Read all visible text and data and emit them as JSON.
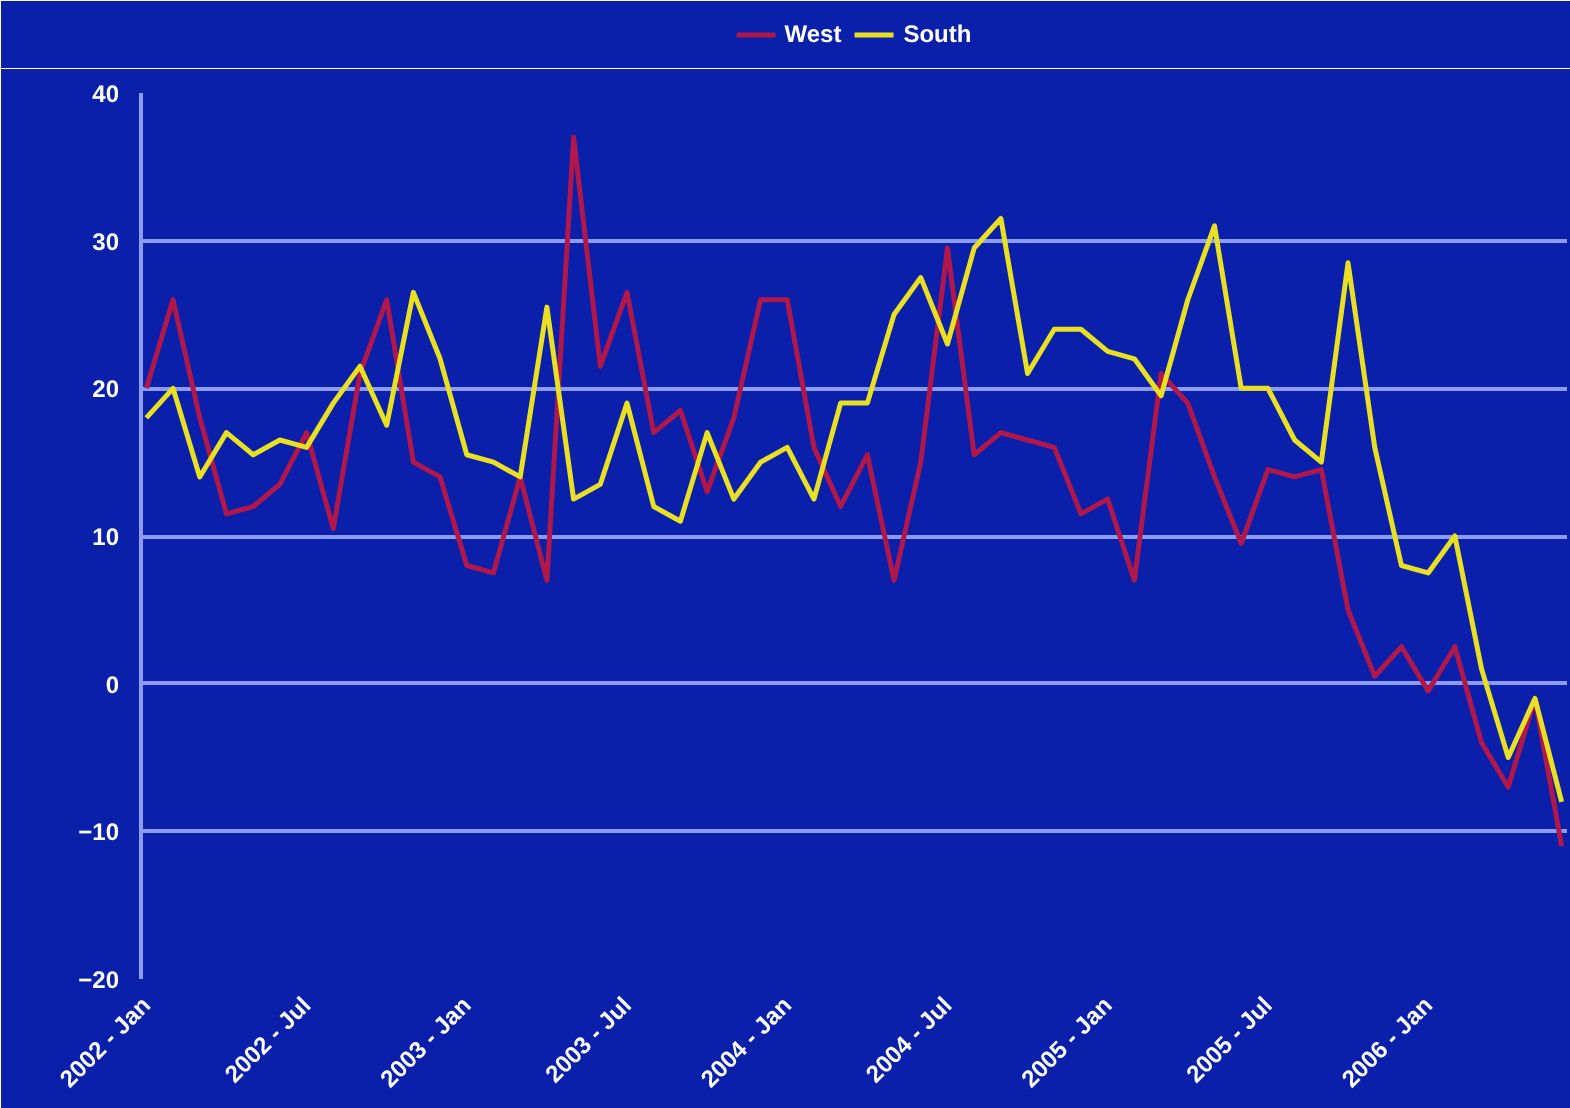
{
  "chart_data": {
    "type": "line",
    "categories": [
      "2002 - Jan",
      null,
      null,
      null,
      null,
      null,
      "2002 - Jul",
      null,
      null,
      null,
      null,
      null,
      "2003 - Jan",
      null,
      null,
      null,
      null,
      null,
      "2003 - Jul",
      null,
      null,
      null,
      null,
      null,
      "2004 - Jan",
      null,
      null,
      null,
      null,
      null,
      "2004 - Jul",
      null,
      null,
      null,
      null,
      null,
      "2005 - Jan",
      null,
      null,
      null,
      null,
      null,
      "2005 - Jul",
      null,
      null,
      null,
      null,
      null,
      "2006 - Jan",
      null,
      null,
      null,
      null,
      null
    ],
    "series": [
      {
        "name": "West",
        "color": "#b0174a",
        "values": [
          20,
          26,
          18,
          11.5,
          12,
          13.5,
          17,
          10.5,
          21,
          26,
          15,
          14,
          8,
          7.5,
          14,
          7,
          37,
          21.5,
          26.5,
          17,
          18.5,
          13,
          18,
          26,
          26,
          16,
          12,
          15.5,
          7,
          15,
          29.5,
          15.5,
          17,
          16.5,
          16,
          11.5,
          12.5,
          7,
          21,
          19,
          14,
          9.5,
          14.5,
          14,
          14.5,
          5,
          0.5,
          2.5,
          -0.5,
          2.5,
          -4,
          -7,
          -1,
          -11
        ]
      },
      {
        "name": "South",
        "color": "#e8e020",
        "values": [
          18,
          20,
          14,
          17,
          15.5,
          16.5,
          16,
          19,
          21.5,
          17.5,
          26.5,
          22,
          15.5,
          15,
          14,
          25.5,
          12.5,
          13.5,
          19,
          12,
          11,
          17,
          12.5,
          15,
          16,
          12.5,
          19,
          19,
          25,
          27.5,
          23,
          29.5,
          31.5,
          21,
          24,
          24,
          22.5,
          22,
          19.5,
          26,
          31,
          20,
          20,
          16.5,
          15,
          28.5,
          16,
          8,
          7.5,
          10,
          1,
          -5,
          -1,
          -8
        ]
      }
    ],
    "ylim": [
      -20,
      40
    ],
    "yticks": [
      -20,
      -10,
      0,
      10,
      20,
      30,
      40
    ],
    "grid": "y",
    "legend": "top",
    "line_style": "solid",
    "marker": "none"
  }
}
